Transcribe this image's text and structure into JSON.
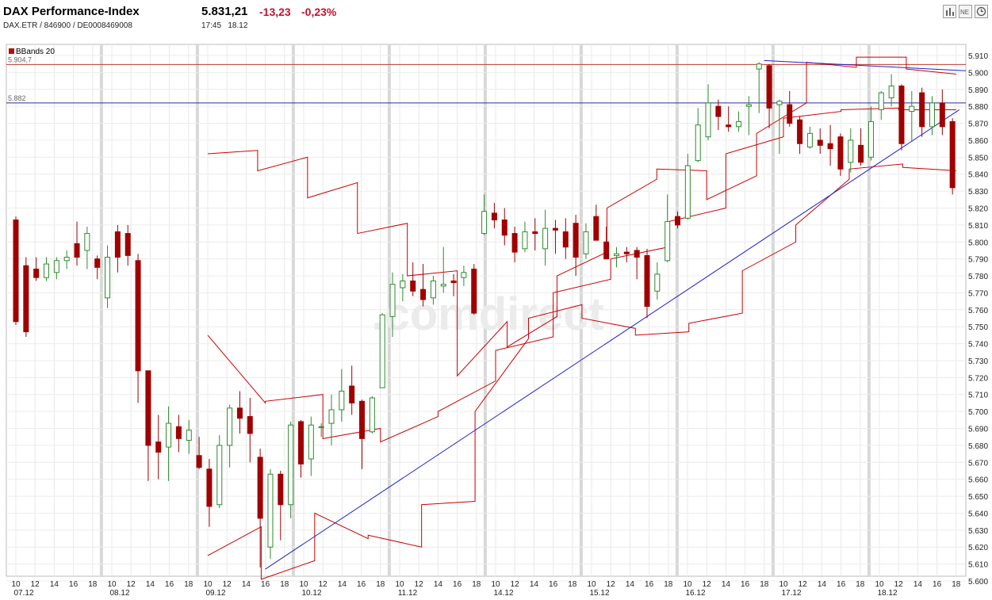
{
  "header": {
    "title": "DAX Performance-Index",
    "price": "5.831,21",
    "change": "-13,23",
    "change_pct": "-0,23%",
    "identifiers": "DAX.ETR  /  846900  /  DE0008469008",
    "time": "17:45",
    "date": "18.12",
    "toolbar_icons": [
      "bar-chart-icon",
      "news-icon",
      "clock-icon"
    ]
  },
  "watermark": ".comdirect",
  "legend": {
    "label": "BBands 20",
    "color": "#b01010"
  },
  "hlines": [
    {
      "label": "5.904,7",
      "value": 5904.7,
      "color": "#c0392b"
    },
    {
      "label": "5.882",
      "value": 5882,
      "color": "#2b2ba8"
    }
  ],
  "colors": {
    "up": "#ffffff",
    "up_stroke": "#2e8b2e",
    "down": "#a00000",
    "band": "#cc0000",
    "trend": "#2020d0"
  },
  "chart_data": {
    "type": "candlestick",
    "ylim": [
      5600,
      5910
    ],
    "y_ticks": [
      "5.600",
      "5.610",
      "5.620",
      "5.630",
      "5.640",
      "5.650",
      "5.660",
      "5.670",
      "5.680",
      "5.690",
      "5.700",
      "5.710",
      "5.720",
      "5.730",
      "5.740",
      "5.750",
      "5.760",
      "5.770",
      "5.780",
      "5.790",
      "5.800",
      "5.810",
      "5.820",
      "5.830",
      "5.840",
      "5.850",
      "5.860",
      "5.870",
      "5.880",
      "5.890",
      "5.900",
      "5.910"
    ],
    "x_hour_labels": [
      "10",
      "12",
      "14",
      "16",
      "18",
      "10",
      "12",
      "14",
      "16",
      "18",
      "10",
      "12",
      "14",
      "16",
      "18",
      "10",
      "12",
      "14",
      "16",
      "18",
      "10",
      "12",
      "14",
      "16",
      "18",
      "10",
      "12",
      "14",
      "16",
      "18",
      "10",
      "12",
      "14",
      "16",
      "18",
      "10",
      "12",
      "14",
      "16",
      "18",
      "10",
      "12",
      "14",
      "16",
      "18",
      "10",
      "12",
      "14",
      "16",
      "18"
    ],
    "x_date_labels": [
      "07.12",
      "08.12",
      "09.12",
      "10.12",
      "11.12",
      "14.12",
      "15.12",
      "16.12",
      "17.12",
      "18.12"
    ],
    "candles": [
      [
        5813,
        5753,
        5815,
        5751
      ],
      [
        5786,
        5747,
        5791,
        5744
      ],
      [
        5784,
        5779,
        5791,
        5777
      ],
      [
        5779,
        5787,
        5791,
        5777
      ],
      [
        5782,
        5789,
        5791,
        5778
      ],
      [
        5789,
        5791,
        5795,
        5784
      ],
      [
        5799,
        5791,
        5812,
        5786
      ],
      [
        5795,
        5805,
        5809,
        5784
      ],
      [
        5790,
        5785,
        5792,
        5778
      ],
      [
        5767,
        5791,
        5798,
        5761
      ],
      [
        5806,
        5791,
        5810,
        5782
      ],
      [
        5805,
        5792,
        5810,
        5786
      ],
      [
        5789,
        5724,
        5793,
        5705
      ],
      [
        5724,
        5680,
        5724,
        5659
      ],
      [
        5682,
        5676,
        5698,
        5660
      ],
      [
        5679,
        5693,
        5703,
        5659
      ],
      [
        5691,
        5684,
        5698,
        5676
      ],
      [
        5683,
        5689,
        5695,
        5675
      ],
      [
        5674,
        5667,
        5685,
        5666
      ],
      [
        5666,
        5644,
        5672,
        5632
      ],
      [
        5645,
        5680,
        5686,
        5643
      ],
      [
        5680,
        5702,
        5704,
        5667
      ],
      [
        5702,
        5696,
        5712,
        5687
      ],
      [
        5697,
        5687,
        5708,
        5670
      ],
      [
        5673,
        5637,
        5678,
        5608
      ],
      [
        5620,
        5663,
        5666,
        5613
      ],
      [
        5663,
        5645,
        5665,
        5624
      ],
      [
        5645,
        5692,
        5694,
        5637
      ],
      [
        5694,
        5669,
        5695,
        5661
      ],
      [
        5672,
        5692,
        5697,
        5662
      ],
      [
        5691,
        5691,
        5693,
        5685
      ],
      [
        5693,
        5701,
        5710,
        5680
      ],
      [
        5701,
        5712,
        5725,
        5694
      ],
      [
        5715,
        5705,
        5727,
        5698
      ],
      [
        5706,
        5684,
        5707,
        5666
      ],
      [
        5688,
        5708,
        5709,
        5687
      ],
      [
        5714,
        5757,
        5758,
        5714
      ],
      [
        5756,
        5775,
        5782,
        5744
      ],
      [
        5773,
        5777,
        5781,
        5765
      ],
      [
        5777,
        5771,
        5788,
        5768
      ],
      [
        5772,
        5766,
        5787,
        5762
      ],
      [
        5767,
        5777,
        5780,
        5763
      ],
      [
        5774,
        5775,
        5797,
        5770
      ],
      [
        5777,
        5776,
        5781,
        5768
      ],
      [
        5779,
        5782,
        5786,
        5774
      ],
      [
        5784,
        5758,
        5787,
        5757
      ],
      [
        5805,
        5818,
        5828,
        5804
      ],
      [
        5817,
        5813,
        5823,
        5808
      ],
      [
        5813,
        5804,
        5820,
        5798
      ],
      [
        5805,
        5794,
        5809,
        5788
      ],
      [
        5796,
        5806,
        5812,
        5794
      ],
      [
        5806,
        5805,
        5814,
        5795
      ],
      [
        5796,
        5808,
        5819,
        5786
      ],
      [
        5808,
        5807,
        5813,
        5793
      ],
      [
        5806,
        5797,
        5814,
        5790
      ],
      [
        5811,
        5791,
        5816,
        5780
      ],
      [
        5793,
        5806,
        5811,
        5790
      ],
      [
        5815,
        5801,
        5822,
        5801
      ],
      [
        5800,
        5790,
        5809,
        5790
      ],
      [
        5792,
        5793,
        5797,
        5785
      ],
      [
        5794,
        5793,
        5797,
        5788
      ],
      [
        5795,
        5791,
        5797,
        5778
      ],
      [
        5792,
        5762,
        5796,
        5755
      ],
      [
        5771,
        5781,
        5788,
        5766
      ],
      [
        5789,
        5812,
        5828,
        5788
      ],
      [
        5815,
        5810,
        5818,
        5808
      ],
      [
        5814,
        5845,
        5852,
        5813
      ],
      [
        5848,
        5869,
        5879,
        5847
      ],
      [
        5862,
        5882,
        5893,
        5860
      ],
      [
        5880,
        5874,
        5884,
        5866
      ],
      [
        5869,
        5868,
        5880,
        5865
      ],
      [
        5868,
        5871,
        5877,
        5865
      ],
      [
        5880,
        5881,
        5886,
        5863
      ],
      [
        5902,
        5905,
        5906,
        5876
      ],
      [
        5904,
        5879,
        5905,
        5867
      ],
      [
        5881,
        5883,
        5884,
        5852
      ],
      [
        5881,
        5870,
        5889,
        5868
      ],
      [
        5872,
        5858,
        5874,
        5852
      ],
      [
        5856,
        5864,
        5868,
        5855
      ],
      [
        5860,
        5857,
        5867,
        5852
      ],
      [
        5858,
        5855,
        5869,
        5845
      ],
      [
        5862,
        5843,
        5864,
        5839
      ],
      [
        5847,
        5860,
        5867,
        5841
      ],
      [
        5857,
        5847,
        5867,
        5845
      ],
      [
        5850,
        5871,
        5880,
        5848
      ],
      [
        5878,
        5888,
        5889,
        5872
      ],
      [
        5885,
        5892,
        5899,
        5880
      ],
      [
        5892,
        5858,
        5893,
        5854
      ],
      [
        5877,
        5880,
        5889,
        5859
      ],
      [
        5888,
        5868,
        5891,
        5862
      ],
      [
        5868,
        5882,
        5886,
        5863
      ],
      [
        5882,
        5868,
        5890,
        5863
      ],
      [
        5871,
        5832,
        5873,
        5828
      ]
    ],
    "bbands": {
      "upper": [
        [
          5852,
          5854
        ],
        [
          5842,
          5850
        ],
        [
          5826,
          5835
        ],
        [
          5805,
          5811
        ],
        [
          5780,
          5783
        ],
        [
          5721,
          5753
        ],
        [
          5738,
          5756
        ],
        [
          5780,
          5794
        ],
        [
          5820,
          5837
        ],
        [
          5843,
          5842
        ],
        [
          5825,
          5839
        ],
        [
          5864,
          5882
        ],
        [
          5906,
          5903
        ],
        [
          5909,
          5909
        ],
        [
          5902,
          5899
        ]
      ],
      "middle": [
        [
          5745,
          5705
        ],
        [
          5706,
          5710
        ],
        [
          5684,
          5690
        ],
        [
          5682,
          5697
        ],
        [
          5700,
          5718
        ],
        [
          5736,
          5744
        ],
        [
          5770,
          5778
        ],
        [
          5790,
          5797
        ],
        [
          5812,
          5820
        ],
        [
          5852,
          5862
        ],
        [
          5873,
          5877
        ],
        [
          5878,
          5879
        ],
        [
          5878,
          5878
        ]
      ],
      "lower": [
        [
          5615,
          5632
        ],
        [
          5601,
          5612
        ],
        [
          5640,
          5625
        ],
        [
          5627,
          5620
        ],
        [
          5645,
          5647
        ],
        [
          5700,
          5743
        ],
        [
          5755,
          5763
        ],
        [
          5755,
          5749
        ],
        [
          5745,
          5747
        ],
        [
          5752,
          5758
        ],
        [
          5783,
          5800
        ],
        [
          5810,
          5837
        ],
        [
          5843,
          5846
        ],
        [
          5844,
          5842
        ]
      ]
    },
    "trendlines": [
      {
        "from": [
          5607
        ],
        "to": [
          5878
        ]
      },
      {
        "from": [
          5907
        ],
        "to": [
          5901
        ]
      }
    ]
  }
}
